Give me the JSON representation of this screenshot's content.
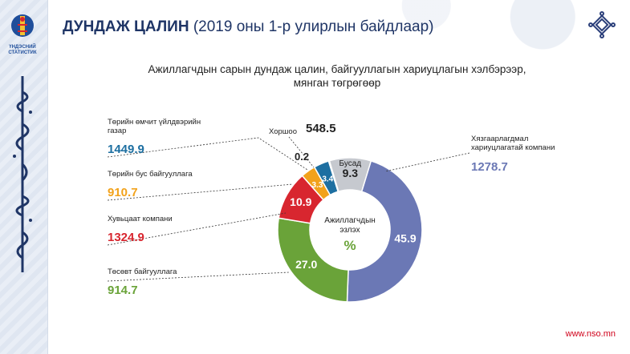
{
  "header": {
    "title_bold": "ДУНДАЖ ЦАЛИН",
    "title_rest": "(2019 оны 1-р улирлын байдлаар)",
    "logo_caption": "ҮНДЭСНИЙ СТАТИСТИК"
  },
  "subtitle": {
    "line1": "Ажиллагчдын сарын дундаж цалин, байгууллагын хариуцлагын хэлбэрээр,",
    "line2": "мянган төгрөгөөр"
  },
  "colors": {
    "blue_slate": "#6b78b5",
    "green": "#6aa339",
    "red": "#d8262f",
    "orange": "#f2a21b",
    "teal": "#1d6fa1",
    "grey": "#c6c9cf",
    "black": "#111111",
    "title": "#1f3566"
  },
  "chart_data": {
    "type": "pie",
    "title": "Ажиллагчдын сарын дундаж цалин, байгууллагын хариуцлагын хэлбэрээр, мянган төгрөгөөр",
    "center_label": "Ажиллагчдын эзлэх",
    "center_unit": "%",
    "slices": [
      {
        "name": "Хязгаарлагдмал хариуцлагатай компани",
        "share": 45.9,
        "share_label": "45.9",
        "salary": "1278.7",
        "color": "#6b78b5"
      },
      {
        "name": "Төсөвт байгууллага",
        "share": 27.0,
        "share_label": "27.0",
        "salary": "914.7",
        "color": "#6aa339"
      },
      {
        "name": "Хувьцаат компани",
        "share": 10.9,
        "share_label": "10.9",
        "salary": "1324.9",
        "color": "#d8262f"
      },
      {
        "name": "Төрийн бус байгууллага",
        "share": 3.3,
        "share_label": "3.3",
        "salary": "910.7",
        "color": "#f2a21b"
      },
      {
        "name": "Төрийн өмчит үйлдвэрийн газар",
        "share": 3.4,
        "share_label": "3.4",
        "salary": "1449.9",
        "color": "#1d6fa1"
      },
      {
        "name": "Хоршоо",
        "share": 0.2,
        "share_label": "0.2",
        "salary": "548.5",
        "color": "#111111"
      },
      {
        "name": "Бусад",
        "share": 9.3,
        "share_label": "9.3",
        "salary": "",
        "color": "#c6c9cf"
      }
    ]
  },
  "labels": {
    "state_owned_name": "Төрийн өмчит үйлдвэрийн газар",
    "state_owned_value": "1449.9",
    "ngo_name": "Төрийн бус байгууллага",
    "ngo_value": "910.7",
    "joint_stock_name": "Хувьцаат компани",
    "joint_stock_value": "1324.9",
    "budget_name": "Төсөвт байгууллага",
    "budget_value": "914.7",
    "llc_name": "Хязгаарлагдмал хариуцлагатай компани",
    "llc_value": "1278.7",
    "coop_name": "Хоршоо",
    "coop_value": "548.5",
    "coop_share": "0.2",
    "other_name": "Бусад"
  },
  "footer": {
    "url": "www.nso.mn"
  }
}
